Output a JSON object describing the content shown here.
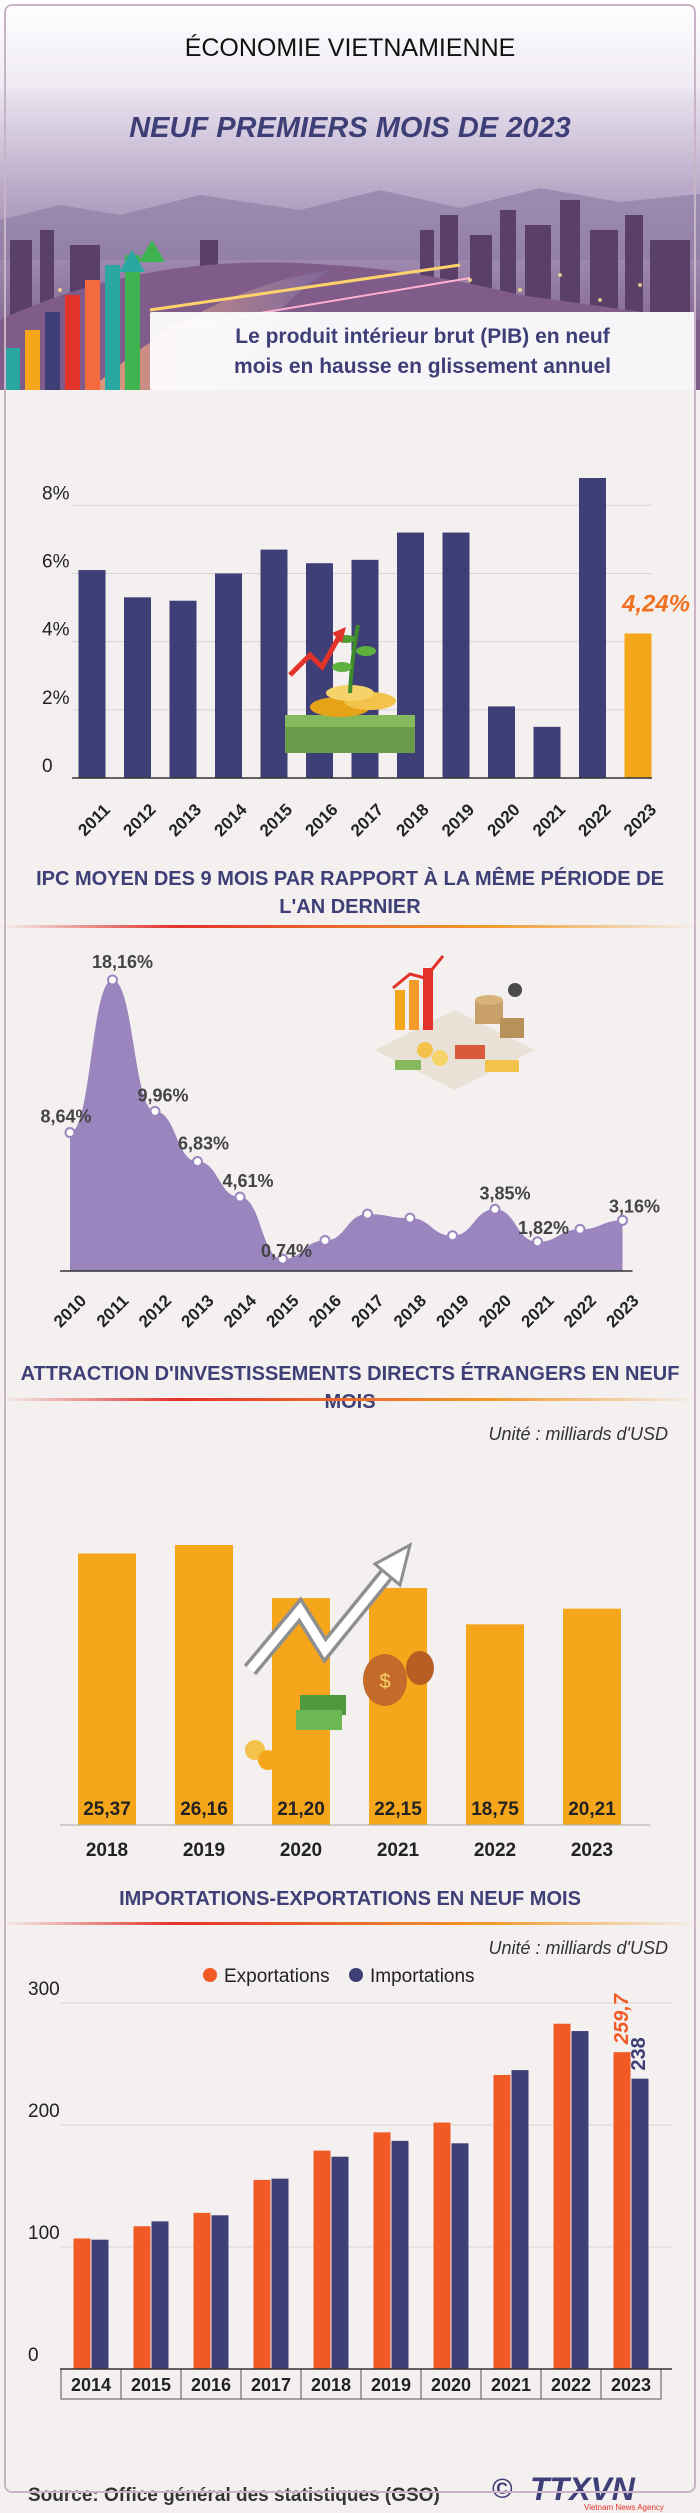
{
  "header": {
    "title": "ÉCONOMIE VIETNAMIENNE",
    "subtitle": "NEUF PREMIERS MOIS DE 2023",
    "panel_line1": "Le produit intérieur brut (PIB) en neuf",
    "panel_line2": "mois en hausse en glissement annuel"
  },
  "sections": {
    "cpi_title_line1": "IPC MOYEN DES 9 MOIS PAR RAPPORT À LA MÊME PÉRIODE DE",
    "cpi_title_line2": "L'AN DERNIER",
    "fdi_title": "ATTRACTION D'INVESTISSEMENTS DIRECTS ÉTRANGERS EN NEUF MOIS",
    "fdi_unit": "Unité : milliards d'USD",
    "trade_title": "IMPORTATIONS-EXPORTATIONS EN NEUF MOIS",
    "trade_unit": "Unité : milliards d'USD"
  },
  "source": "Source: Office général des statistiques (GSO)",
  "logo": {
    "symbol": "©",
    "text": "TTXVN",
    "sub": "Vietnam News Agency"
  },
  "colors": {
    "navy": "#3e3f77",
    "orange": "#f6a61a",
    "red_orange": "#f25a25",
    "purple": "#9b85bf",
    "highlight": "#f0711f"
  },
  "chart_data": [
    {
      "type": "bar",
      "categories": [
        "2011",
        "2012",
        "2013",
        "2014",
        "2015",
        "2016",
        "2017",
        "2018",
        "2019",
        "2020",
        "2021",
        "2022",
        "2023"
      ],
      "values": [
        6.1,
        5.3,
        5.2,
        6.0,
        6.7,
        6.3,
        6.4,
        7.2,
        7.2,
        2.1,
        1.5,
        8.8,
        4.24
      ],
      "value_labels": [
        "",
        "",
        "",
        "",
        "",
        "",
        "",
        "",
        "",
        "",
        "",
        "",
        "4,24%"
      ],
      "yticks": [
        "8%",
        "6%",
        "4%",
        "2%",
        "0"
      ],
      "ylim": [
        0,
        8.8
      ],
      "grid": true
    },
    {
      "type": "area",
      "categories": [
        "2010",
        "2011",
        "2012",
        "2013",
        "2014",
        "2015",
        "2016",
        "2017",
        "2018",
        "2019",
        "2020",
        "2021",
        "2022",
        "2023"
      ],
      "values": [
        8.64,
        18.16,
        9.96,
        6.83,
        4.61,
        0.74,
        1.9,
        3.55,
        3.3,
        2.2,
        3.85,
        1.82,
        2.6,
        3.16
      ],
      "value_labels": [
        "8,64%",
        "18,16%",
        "9,96%",
        "6,83%",
        "4,61%",
        "0,74%",
        "",
        "",
        "",
        "",
        "3,85%",
        "1,82%",
        "",
        "3,16%"
      ],
      "ylim": [
        0,
        18.16
      ]
    },
    {
      "type": "bar",
      "categories": [
        "2018",
        "2019",
        "2020",
        "2021",
        "2022",
        "2023"
      ],
      "values": [
        25.37,
        26.16,
        21.2,
        22.15,
        18.75,
        20.21
      ],
      "value_labels": [
        "25,37",
        "26,16",
        "21,20",
        "22,15",
        "18,75",
        "20,21"
      ],
      "ylim": [
        0,
        26.16
      ]
    },
    {
      "type": "bar",
      "categories": [
        "2014",
        "2015",
        "2016",
        "2017",
        "2018",
        "2019",
        "2020",
        "2021",
        "2022",
        "2023"
      ],
      "series": [
        {
          "name": "Exportations",
          "values": [
            107,
            117,
            128,
            155,
            179,
            194,
            202,
            241,
            283,
            259.7
          ]
        },
        {
          "name": "Importations",
          "values": [
            106,
            121,
            126,
            156,
            174,
            187,
            185,
            245,
            277,
            238
          ]
        }
      ],
      "value_labels": {
        "Exportations_2023": "259,7",
        "Importations_2023": "238"
      },
      "yticks": [
        "300",
        "200",
        "100",
        "0"
      ],
      "ylim": [
        0,
        300
      ],
      "legend": "top-center"
    }
  ]
}
